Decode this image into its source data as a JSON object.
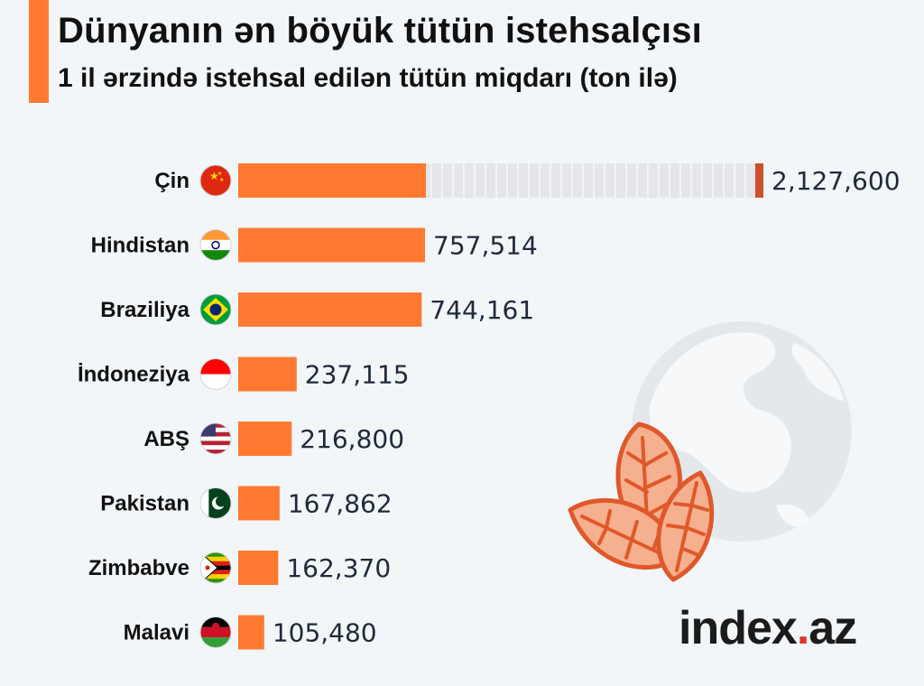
{
  "header": {
    "title": "Dünyanın ən böyük tütün istehsalçısı",
    "subtitle": "1 il ərzində istehsal edilən tütün miqdarı (ton ilə)"
  },
  "brand": {
    "name": "index",
    "dot": ".",
    "tld": "az"
  },
  "colors": {
    "bar": "#ff7a30",
    "bar_track": "#e4e6e9",
    "break_marker": "#c9502a",
    "label": "#111111",
    "value": "#1e2a3a"
  },
  "chart_data": {
    "type": "bar",
    "orientation": "horizontal",
    "categories": [
      "Çin",
      "Hindistan",
      "Braziliya",
      "İndoneziya",
      "ABŞ",
      "Pakistan",
      "Zimbabve",
      "Malavi"
    ],
    "values": [
      2127600,
      757514,
      744161,
      237115,
      216800,
      167862,
      162370,
      105480
    ],
    "value_labels": [
      "2,127,600",
      "757,514",
      "744,161",
      "237,115",
      "216,800",
      "167,862",
      "162,370",
      "105,480"
    ],
    "flags": [
      "china-flag-icon",
      "india-flag-icon",
      "brazil-flag-icon",
      "indonesia-flag-icon",
      "usa-flag-icon",
      "pakistan-flag-icon",
      "zimbabwe-flag-icon",
      "malawi-flag-icon"
    ],
    "axis_break": true,
    "grid": false,
    "legend": "none"
  }
}
